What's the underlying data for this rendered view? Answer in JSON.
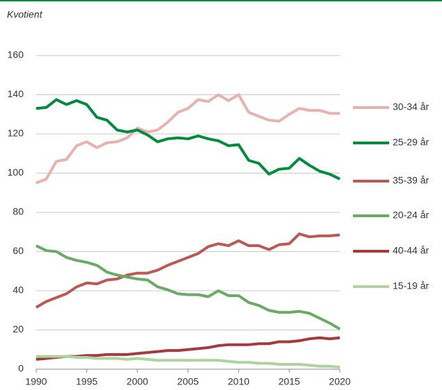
{
  "chart_data": {
    "type": "line",
    "y_label": "Kvotient",
    "x": [
      1990,
      1991,
      1992,
      1993,
      1994,
      1995,
      1996,
      1997,
      1998,
      1999,
      2000,
      2001,
      2002,
      2003,
      2004,
      2005,
      2006,
      2007,
      2008,
      2009,
      2010,
      2011,
      2012,
      2013,
      2014,
      2015,
      2016,
      2017,
      2018,
      2019,
      2020
    ],
    "xlim": [
      1990,
      2020
    ],
    "xticks": [
      1990,
      1995,
      2000,
      2005,
      2010,
      2015,
      2020
    ],
    "ylim": [
      0,
      160
    ],
    "yticks": [
      0,
      20,
      40,
      60,
      80,
      100,
      120,
      140,
      160
    ],
    "grid": true,
    "series": [
      {
        "name": "30-34 år",
        "color": "#e6b3ae",
        "values": [
          95,
          97,
          106,
          107,
          114,
          116,
          113,
          115.5,
          116,
          118,
          123,
          121,
          122,
          126,
          131,
          133,
          137.5,
          136.5,
          140,
          137,
          140,
          131,
          129,
          127,
          126.5,
          130,
          133,
          132,
          132,
          130.5,
          130.5
        ]
      },
      {
        "name": "25-29 år",
        "color": "#008a3c",
        "values": [
          133,
          133.5,
          137.5,
          135,
          137,
          135,
          128.5,
          127,
          122,
          121,
          122,
          119.5,
          116,
          117.5,
          118,
          117.5,
          119,
          117.5,
          116.5,
          114,
          114.5,
          106.5,
          105,
          99.5,
          102,
          102.5,
          107.5,
          104,
          101,
          99.5,
          97
        ]
      },
      {
        "name": "35-39 år",
        "color": "#b95a57",
        "values": [
          31.5,
          34.5,
          36.5,
          38.5,
          42,
          44,
          43.5,
          45.5,
          46,
          48,
          49,
          49,
          50.5,
          53,
          55,
          57,
          59,
          62.5,
          64,
          63,
          65.5,
          63,
          63,
          61,
          63.5,
          64,
          69,
          67.5,
          68,
          68,
          68.5
        ]
      },
      {
        "name": "20-24 år",
        "color": "#6aaa64",
        "values": [
          63,
          60.5,
          60,
          57,
          55.5,
          54.5,
          53,
          49.5,
          48,
          47,
          46,
          45.5,
          42,
          40.5,
          38.5,
          38,
          38,
          37,
          40,
          37.5,
          37.5,
          34,
          32.5,
          30,
          29,
          29,
          29.5,
          28.5,
          26,
          23.5,
          20.5
        ]
      },
      {
        "name": "40-44 år",
        "color": "#a23a3e",
        "values": [
          5,
          5.5,
          6,
          6.5,
          6.5,
          7,
          7,
          7.5,
          7.5,
          7.5,
          8,
          8.5,
          9,
          9.5,
          9.5,
          10,
          10.5,
          11,
          12,
          12.5,
          12.5,
          12.5,
          13,
          13,
          14,
          14,
          14.5,
          15.5,
          16,
          15.5,
          16
        ]
      },
      {
        "name": "15-19 år",
        "color": "#aed39c",
        "values": [
          6.5,
          6.5,
          6.5,
          6.5,
          6,
          6,
          5.5,
          5.5,
          5.5,
          5,
          5.5,
          5,
          4.5,
          4.5,
          4.5,
          4.5,
          4.5,
          4.5,
          4.5,
          4,
          3.5,
          3.5,
          3,
          3,
          2.5,
          2.5,
          2.5,
          2,
          1.5,
          1.5,
          1
        ]
      }
    ]
  }
}
